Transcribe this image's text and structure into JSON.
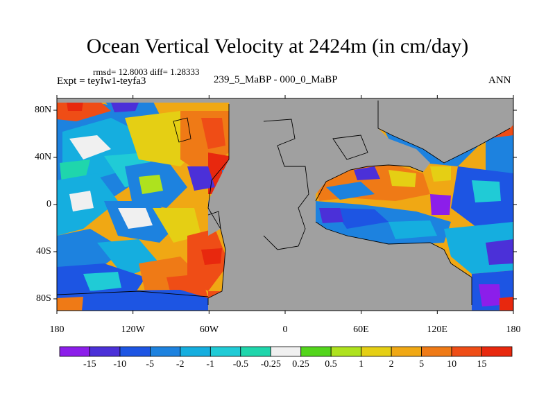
{
  "title": "Ocean Vertical Velocity at 2424m (in cm/day)",
  "stats_text": "rmsd= 12.8003 diff= 1.28333",
  "left_label": "Expt = teyIw1-teyfa3",
  "subtitle": "239_5_MaBP - 000_0_MaBP",
  "right_label": "ANN",
  "map": {
    "projection": "cylindrical equidistant",
    "lon_range": [
      -180,
      180
    ],
    "lat_range": [
      -90,
      90
    ],
    "lon_ticks": [
      {
        "value": -180,
        "label": "180"
      },
      {
        "value": -120,
        "label": "120W"
      },
      {
        "value": -60,
        "label": "60W"
      },
      {
        "value": 0,
        "label": "0"
      },
      {
        "value": 60,
        "label": "60E"
      },
      {
        "value": 120,
        "label": "120E"
      },
      {
        "value": 180,
        "label": "180"
      }
    ],
    "lat_ticks": [
      {
        "value": 80,
        "label": "80N"
      },
      {
        "value": 40,
        "label": "40N"
      },
      {
        "value": 0,
        "label": "0"
      },
      {
        "value": -40,
        "label": "40S"
      },
      {
        "value": -80,
        "label": "80S"
      }
    ],
    "land_color": "#a0a0a0",
    "outline_color": "#000000",
    "data_description": "filled contours of annual-mean vertical velocity difference; land (gray) of the 239.5 Ma Pangaea configuration"
  },
  "colorbar": {
    "labels": [
      "-15",
      "-10",
      "-5",
      "-2",
      "-1",
      "-0.5",
      "-0.25",
      "0.25",
      "0.5",
      "1",
      "2",
      "5",
      "10",
      "15"
    ],
    "colors": [
      "#8c1eea",
      "#4b30d8",
      "#1d55e3",
      "#1d82df",
      "#15aedf",
      "#20cbd6",
      "#1fd6ac",
      "#f0f0f0",
      "#53d51c",
      "#aee21e",
      "#e5cf14",
      "#f0a814",
      "#ef7a16",
      "#ef4d16",
      "#e8280e"
    ]
  }
}
